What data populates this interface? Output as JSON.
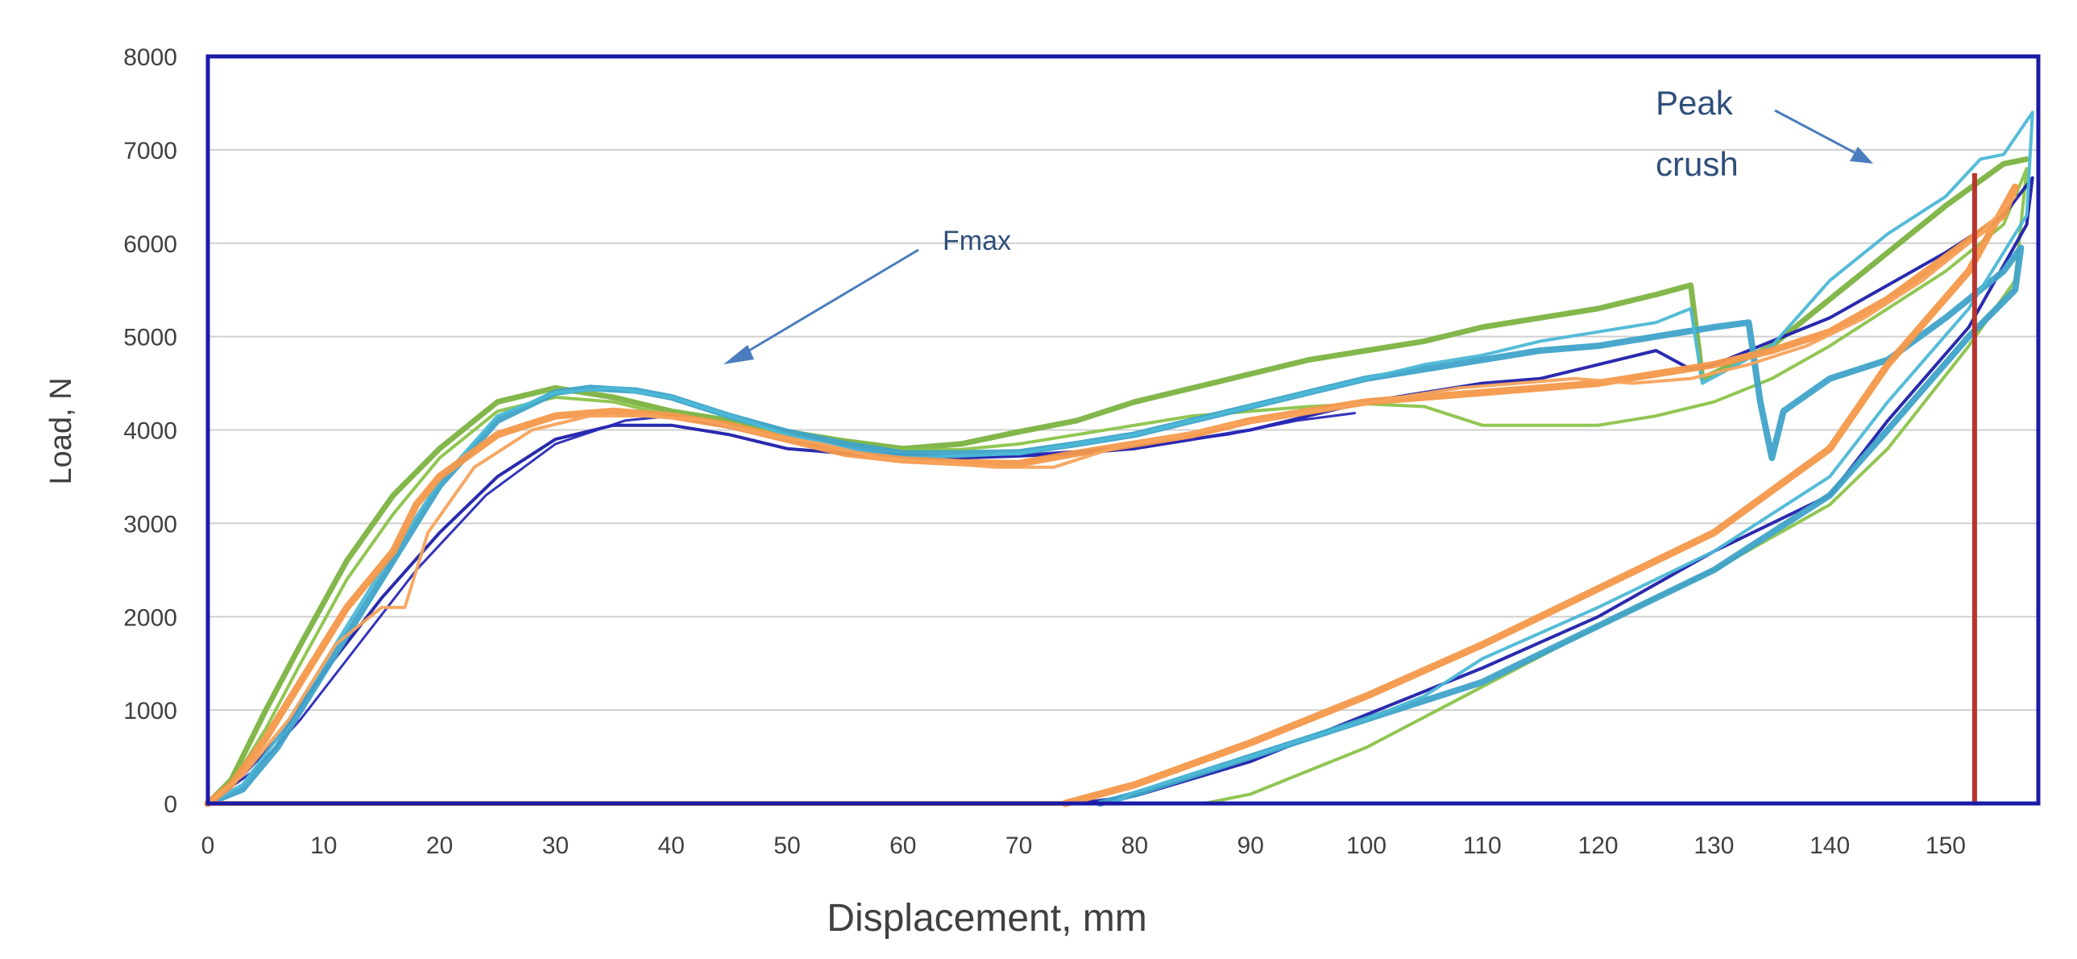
{
  "chart_data": {
    "type": "line",
    "title": "",
    "xlabel": "Displacement, mm",
    "ylabel": "Load, N",
    "xlim": [
      0,
      158
    ],
    "ylim": [
      0,
      8000
    ],
    "xticks": [
      0,
      10,
      20,
      30,
      40,
      50,
      60,
      70,
      80,
      90,
      100,
      110,
      120,
      130,
      140,
      150
    ],
    "yticks": [
      0,
      1000,
      2000,
      3000,
      4000,
      5000,
      6000,
      7000,
      8000
    ],
    "grid": "horizontal",
    "colors": {
      "frame": "#1a1aa8",
      "grid": "#d0d0d0",
      "annotation": "#2f4f7a",
      "arrow": "#4a7dbd",
      "marker": "#b8352e"
    },
    "annotations": [
      {
        "id": "fmax",
        "text": "Fmax"
      },
      {
        "id": "peak",
        "lines": [
          "Peak",
          "crush"
        ]
      }
    ],
    "vertical_marker": {
      "x": 152.5,
      "y_top": 6750,
      "color": "#b8352e"
    },
    "series": [
      {
        "name": "green-thick",
        "color": "#7cb342",
        "width": 7,
        "x": [
          0,
          2,
          5,
          8,
          12,
          16,
          20,
          25,
          30,
          35,
          40,
          45,
          50,
          55,
          60,
          65,
          70,
          75,
          80,
          85,
          90,
          95,
          100,
          105,
          110,
          115,
          120,
          125,
          128,
          129,
          135,
          140,
          145,
          150,
          155,
          157
        ],
        "y": [
          0,
          250,
          1000,
          1700,
          2600,
          3300,
          3800,
          4300,
          4450,
          4350,
          4200,
          4100,
          3980,
          3880,
          3800,
          3850,
          3980,
          4100,
          4300,
          4450,
          4600,
          4750,
          4850,
          4950,
          5100,
          5200,
          5300,
          5450,
          5550,
          4550,
          4900,
          5400,
          5900,
          6400,
          6850,
          6900
        ]
      },
      {
        "name": "green-thin",
        "color": "#8bc34a",
        "width": 4,
        "x": [
          0,
          2,
          5,
          8,
          12,
          16,
          20,
          25,
          30,
          35,
          40,
          45,
          50,
          55,
          60,
          65,
          70,
          75,
          80,
          85,
          90,
          95,
          100,
          105,
          110,
          115,
          120,
          125,
          130,
          135,
          140,
          145,
          150,
          155,
          157,
          156,
          152,
          145,
          140,
          130,
          120,
          110,
          100,
          90,
          86
        ],
        "y": [
          0,
          200,
          800,
          1500,
          2400,
          3100,
          3700,
          4200,
          4350,
          4300,
          4150,
          4050,
          3950,
          3850,
          3780,
          3790,
          3850,
          3950,
          4050,
          4150,
          4200,
          4250,
          4280,
          4250,
          4050,
          4050,
          4050,
          4150,
          4300,
          4550,
          4900,
          5300,
          5700,
          6200,
          6800,
          5600,
          4900,
          3800,
          3200,
          2500,
          1900,
          1250,
          600,
          100,
          0
        ]
      },
      {
        "name": "navy-1",
        "color": "#1f1faa",
        "width": 4,
        "x": [
          0,
          3,
          6,
          10,
          15,
          20,
          25,
          30,
          35,
          40,
          45,
          50,
          55,
          60,
          65,
          70,
          75,
          80,
          85,
          90,
          95,
          100,
          105,
          110,
          115,
          120,
          125,
          128,
          130,
          135,
          140,
          145,
          150,
          155,
          157.5,
          157,
          152,
          145,
          140,
          130,
          120,
          110,
          100,
          90,
          80,
          75
        ],
        "y": [
          0,
          300,
          700,
          1400,
          2200,
          2900,
          3500,
          3900,
          4050,
          4050,
          3950,
          3800,
          3750,
          3700,
          3700,
          3720,
          3750,
          3800,
          3900,
          4000,
          4150,
          4300,
          4400,
          4500,
          4550,
          4700,
          4850,
          4650,
          4700,
          4950,
          5200,
          5550,
          5900,
          6300,
          6700,
          6200,
          5100,
          4100,
          3300,
          2700,
          2000,
          1450,
          950,
          450,
          80,
          0
        ]
      },
      {
        "name": "navy-2",
        "color": "#2828b8",
        "width": 3,
        "x": [
          0,
          4,
          8,
          13,
          18,
          24,
          30,
          36,
          40,
          46,
          52,
          58,
          64,
          70,
          76,
          82,
          88,
          94,
          99
        ],
        "y": [
          0,
          350,
          900,
          1700,
          2500,
          3300,
          3850,
          4100,
          4150,
          4000,
          3850,
          3750,
          3720,
          3730,
          3780,
          3850,
          3950,
          4100,
          4180
        ]
      },
      {
        "name": "teal-1",
        "color": "#3fa3c8",
        "width": 8,
        "x": [
          0,
          3,
          6,
          10,
          15,
          20,
          25,
          30,
          33,
          37,
          40,
          45,
          50,
          55,
          60,
          65,
          70,
          75,
          80,
          85,
          90,
          95,
          100,
          105,
          110,
          115,
          120,
          125,
          130,
          133,
          134,
          135,
          136,
          140,
          145,
          150,
          155,
          156.5,
          156,
          152,
          145,
          140,
          130,
          120,
          110,
          100,
          90,
          80,
          77
        ],
        "y": [
          0,
          150,
          600,
          1400,
          2400,
          3400,
          4100,
          4400,
          4450,
          4420,
          4350,
          4150,
          3980,
          3850,
          3750,
          3750,
          3760,
          3850,
          3950,
          4100,
          4250,
          4400,
          4550,
          4650,
          4750,
          4850,
          4900,
          5000,
          5100,
          5150,
          4300,
          3700,
          4200,
          4550,
          4750,
          5200,
          5700,
          5950,
          5500,
          5000,
          4000,
          3300,
          2500,
          1900,
          1300,
          900,
          500,
          100,
          0
        ]
      },
      {
        "name": "teal-2",
        "color": "#4cb8d6",
        "width": 4,
        "x": [
          0,
          3,
          6,
          10,
          15,
          20,
          25,
          30,
          35,
          40,
          45,
          50,
          55,
          60,
          65,
          70,
          75,
          80,
          85,
          90,
          95,
          100,
          105,
          110,
          115,
          120,
          125,
          128,
          129,
          135,
          140,
          145,
          150,
          153,
          155,
          157.5,
          157,
          152,
          145,
          140,
          130,
          120,
          110,
          105,
          100,
          90,
          80,
          78
        ],
        "y": [
          0,
          200,
          700,
          1500,
          2500,
          3450,
          4150,
          4400,
          4450,
          4350,
          4150,
          3950,
          3800,
          3700,
          3720,
          3750,
          3850,
          3950,
          4100,
          4250,
          4400,
          4550,
          4700,
          4800,
          4950,
          5050,
          5150,
          5300,
          4500,
          4900,
          5600,
          6100,
          6500,
          6900,
          6950,
          7400,
          6300,
          5300,
          4300,
          3500,
          2700,
          2100,
          1550,
          1150,
          900,
          500,
          120,
          0
        ]
      },
      {
        "name": "orange-thick",
        "color": "#f4984a",
        "width": 9,
        "x": [
          0,
          2,
          5,
          8,
          12,
          16,
          18,
          20,
          25,
          30,
          35,
          40,
          45,
          50,
          55,
          60,
          65,
          70,
          75,
          80,
          85,
          90,
          95,
          100,
          105,
          110,
          115,
          120,
          125,
          130,
          135,
          140,
          145,
          150,
          155,
          156,
          152,
          145,
          140,
          130,
          120,
          110,
          100,
          90,
          80,
          74
        ],
        "y": [
          0,
          200,
          700,
          1300,
          2100,
          2700,
          3200,
          3500,
          3950,
          4150,
          4200,
          4150,
          4050,
          3900,
          3750,
          3680,
          3650,
          3640,
          3750,
          3850,
          3950,
          4100,
          4200,
          4300,
          4350,
          4400,
          4450,
          4500,
          4600,
          4700,
          4850,
          5050,
          5400,
          5850,
          6300,
          6600,
          5700,
          4700,
          3800,
          2900,
          2300,
          1700,
          1150,
          650,
          200,
          0
        ]
      },
      {
        "name": "orange-thin",
        "color": "#f7a35c",
        "width": 4,
        "x": [
          0,
          3,
          7,
          11,
          15,
          17,
          19,
          23,
          28,
          33,
          38,
          43,
          48,
          53,
          58,
          63,
          68,
          73,
          78,
          83,
          88,
          93,
          98,
          103,
          108,
          113,
          118,
          123,
          128,
          133,
          138,
          143,
          148,
          153,
          156
        ],
        "y": [
          0,
          300,
          900,
          1700,
          2100,
          2100,
          2900,
          3600,
          4000,
          4150,
          4150,
          4100,
          3950,
          3850,
          3700,
          3650,
          3600,
          3600,
          3800,
          3920,
          4050,
          4150,
          4250,
          4350,
          4450,
          4500,
          4550,
          4500,
          4550,
          4700,
          4900,
          5200,
          5600,
          6100,
          6500
        ]
      },
      {
        "name": "baseline",
        "color": "#f4984a",
        "width": 6,
        "x": [
          0,
          10,
          20,
          30,
          40,
          50,
          60,
          70,
          74
        ],
        "y": [
          0,
          0,
          0,
          0,
          0,
          0,
          0,
          0,
          0
        ]
      }
    ]
  }
}
